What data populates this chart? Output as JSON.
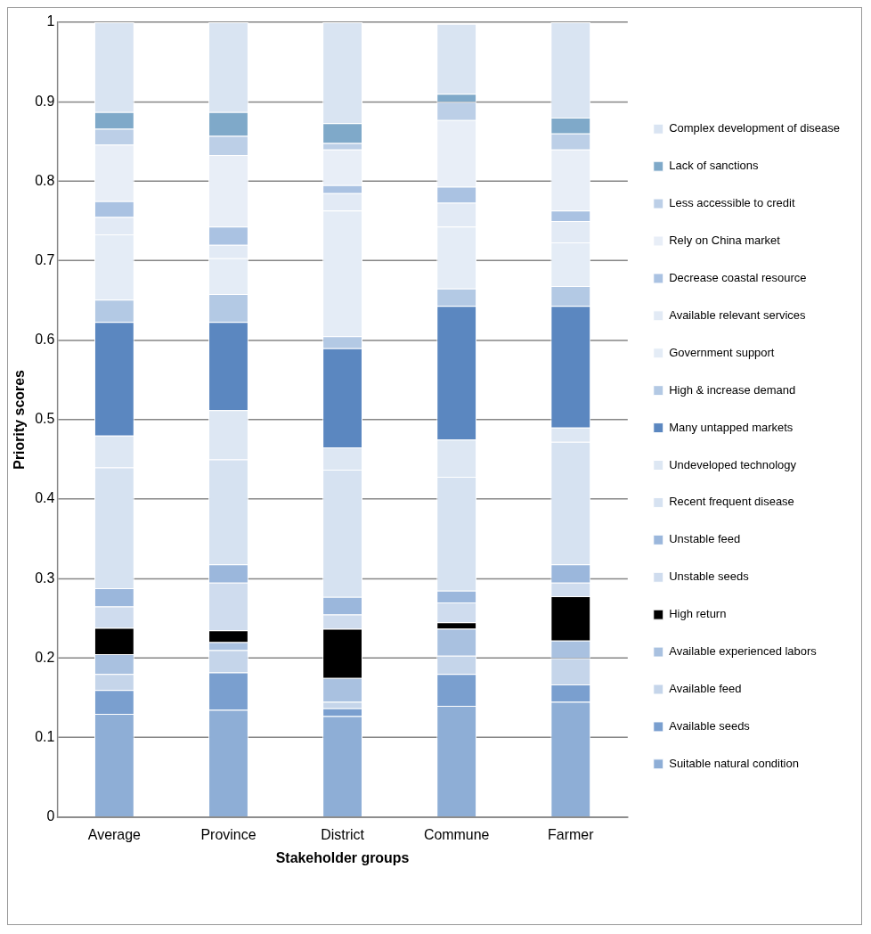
{
  "chart_data": {
    "type": "bar",
    "stacked": true,
    "xlabel": "Stakeholder groups",
    "ylabel": "Priority scores",
    "categories": [
      "Average",
      "Province",
      "District",
      "Commune",
      "Farmer"
    ],
    "ylim": [
      0,
      1
    ],
    "yticks": [
      0,
      0.1,
      0.2,
      0.3,
      0.4,
      0.5,
      0.6,
      0.7,
      0.8,
      0.9,
      1
    ],
    "grid": "y",
    "legend": "right",
    "series": [
      {
        "name": "Suitable natural condition",
        "color": "#8eaed6",
        "values": [
          0.13,
          0.135,
          0.127,
          0.14,
          0.145
        ]
      },
      {
        "name": "Available seeds",
        "color": "#7a9fcf",
        "values": [
          0.03,
          0.047,
          0.01,
          0.04,
          0.022
        ]
      },
      {
        "name": "Available feed",
        "color": "#c5d5ea",
        "values": [
          0.02,
          0.028,
          0.008,
          0.023,
          0.033
        ]
      },
      {
        "name": "Available experienced labors",
        "color": "#a9c1e0",
        "values": [
          0.025,
          0.01,
          0.03,
          0.034,
          0.022
        ]
      },
      {
        "name": "High return",
        "color": "#000000",
        "values": [
          0.033,
          0.015,
          0.062,
          0.008,
          0.056
        ]
      },
      {
        "name": "Unstable seeds",
        "color": "#cfdcee",
        "values": [
          0.027,
          0.06,
          0.018,
          0.025,
          0.017
        ]
      },
      {
        "name": "Unstable feed",
        "color": "#9bb7dc",
        "values": [
          0.023,
          0.023,
          0.022,
          0.015,
          0.023
        ]
      },
      {
        "name": "Recent frequent disease",
        "color": "#d6e2f1",
        "values": [
          0.152,
          0.132,
          0.16,
          0.143,
          0.154
        ]
      },
      {
        "name": "Undeveloped technology",
        "color": "#dde7f3",
        "values": [
          0.04,
          0.062,
          0.028,
          0.047,
          0.018
        ]
      },
      {
        "name": "Many untapped markets",
        "color": "#5b87c0",
        "values": [
          0.143,
          0.111,
          0.125,
          0.168,
          0.153
        ]
      },
      {
        "name": "High & increase demand",
        "color": "#b3c9e4",
        "values": [
          0.028,
          0.035,
          0.015,
          0.022,
          0.025
        ]
      },
      {
        "name": "Government support",
        "color": "#e4ecf6",
        "values": [
          0.082,
          0.045,
          0.158,
          0.078,
          0.055
        ]
      },
      {
        "name": "Available relevant services",
        "color": "#e2eaf5",
        "values": [
          0.022,
          0.017,
          0.022,
          0.03,
          0.027
        ]
      },
      {
        "name": "Decrease coastal resource",
        "color": "#aac2e2",
        "values": [
          0.02,
          0.023,
          0.01,
          0.02,
          0.013
        ]
      },
      {
        "name": "Rely on China market",
        "color": "#e8eef7",
        "values": [
          0.071,
          0.09,
          0.045,
          0.084,
          0.077
        ]
      },
      {
        "name": "Less accessible to credit",
        "color": "#bccfe7",
        "values": [
          0.02,
          0.024,
          0.008,
          0.023,
          0.02
        ]
      },
      {
        "name": "Lack of sanctions",
        "color": "#7fa9c9",
        "values": [
          0.021,
          0.03,
          0.025,
          0.01,
          0.02
        ]
      },
      {
        "name": "Complex development of disease",
        "color": "#d9e4f2",
        "values": [
          0.113,
          0.113,
          0.127,
          0.088,
          0.12
        ]
      }
    ]
  }
}
